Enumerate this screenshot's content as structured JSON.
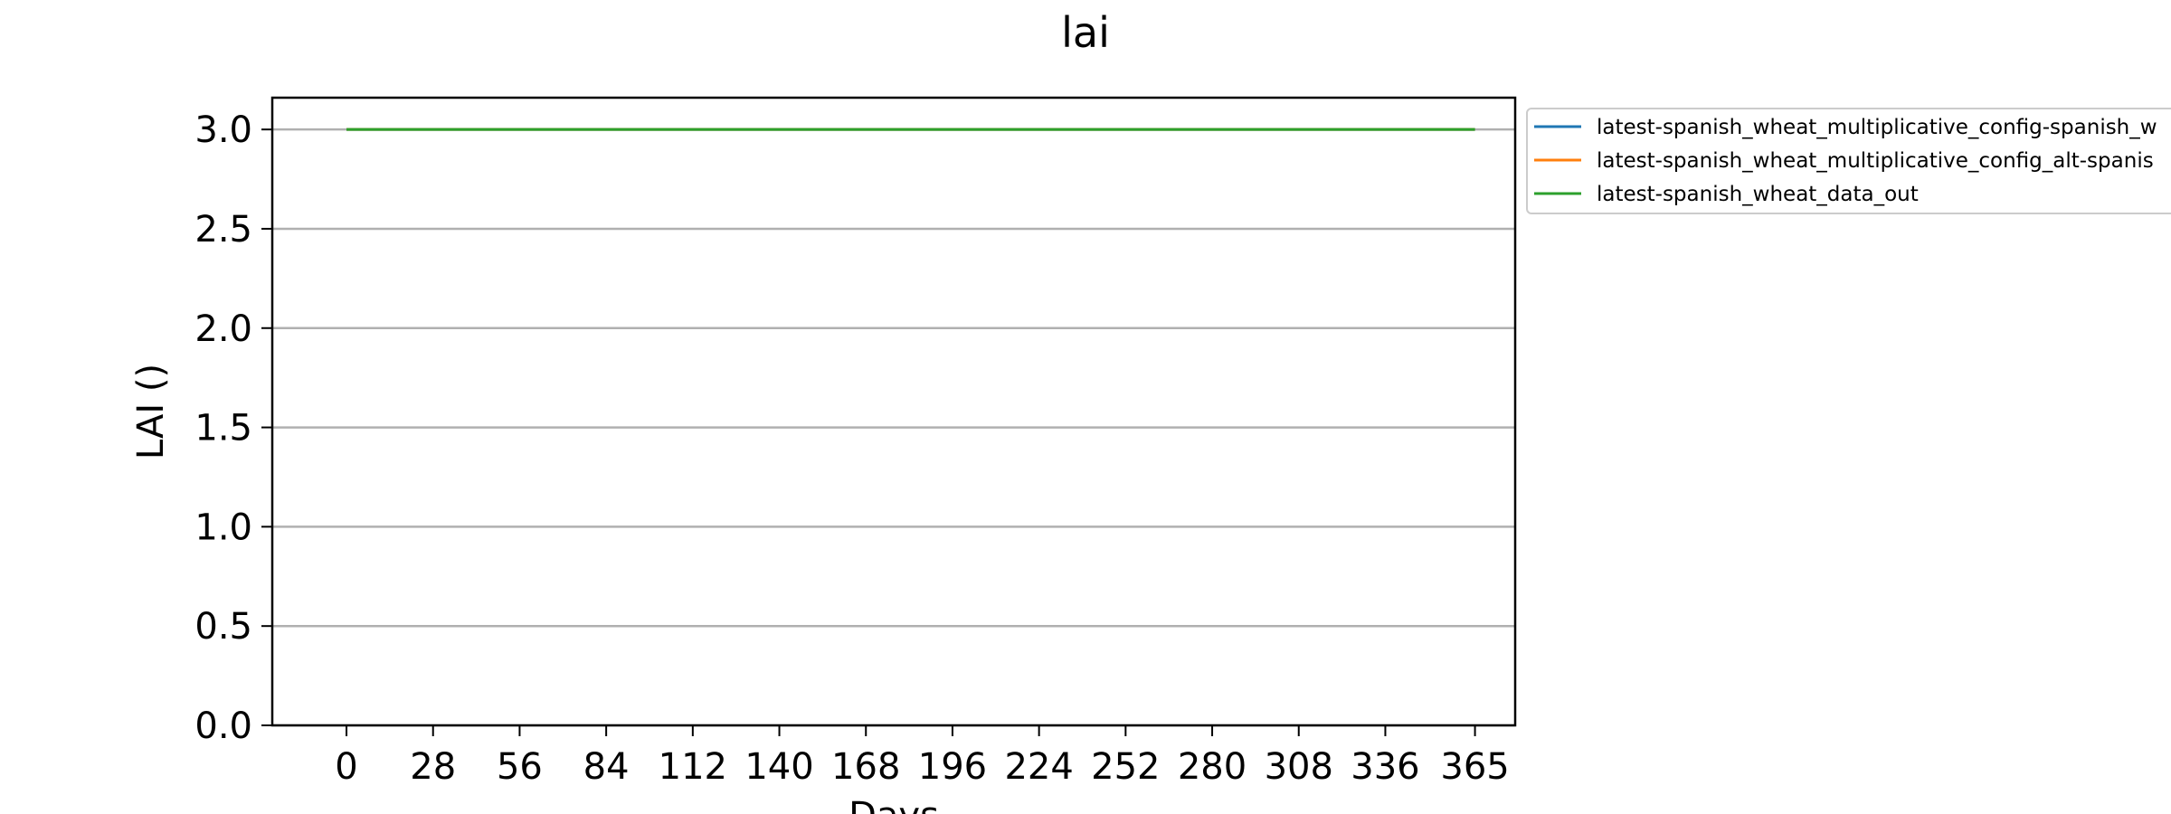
{
  "chart_data": {
    "type": "line",
    "title": "lai",
    "xlabel": "Days",
    "ylabel": "LAI ()",
    "xlim": [
      -24,
      378
    ],
    "ylim": [
      0,
      3.16
    ],
    "xticks": [
      0,
      28,
      56,
      84,
      112,
      140,
      168,
      196,
      224,
      252,
      280,
      308,
      336,
      365
    ],
    "yticks": [
      "0.0",
      "0.5",
      "1.0",
      "1.5",
      "2.0",
      "2.5",
      "3.0"
    ],
    "grid": "horizontal",
    "legend_position": "outside-right",
    "series": [
      {
        "name": "latest-spanish_wheat_multiplicative_config-spanish_w",
        "color": "#1f77b4",
        "x": [
          0,
          365
        ],
        "y": [
          3.0,
          3.0
        ]
      },
      {
        "name": "latest-spanish_wheat_multiplicative_config_alt-spanis",
        "color": "#ff7f0e",
        "x": [
          0,
          365
        ],
        "y": [
          3.0,
          3.0
        ]
      },
      {
        "name": "latest-spanish_wheat_data_out",
        "color": "#2ca02c",
        "x": [
          0,
          365
        ],
        "y": [
          3.0,
          3.0
        ]
      }
    ]
  }
}
